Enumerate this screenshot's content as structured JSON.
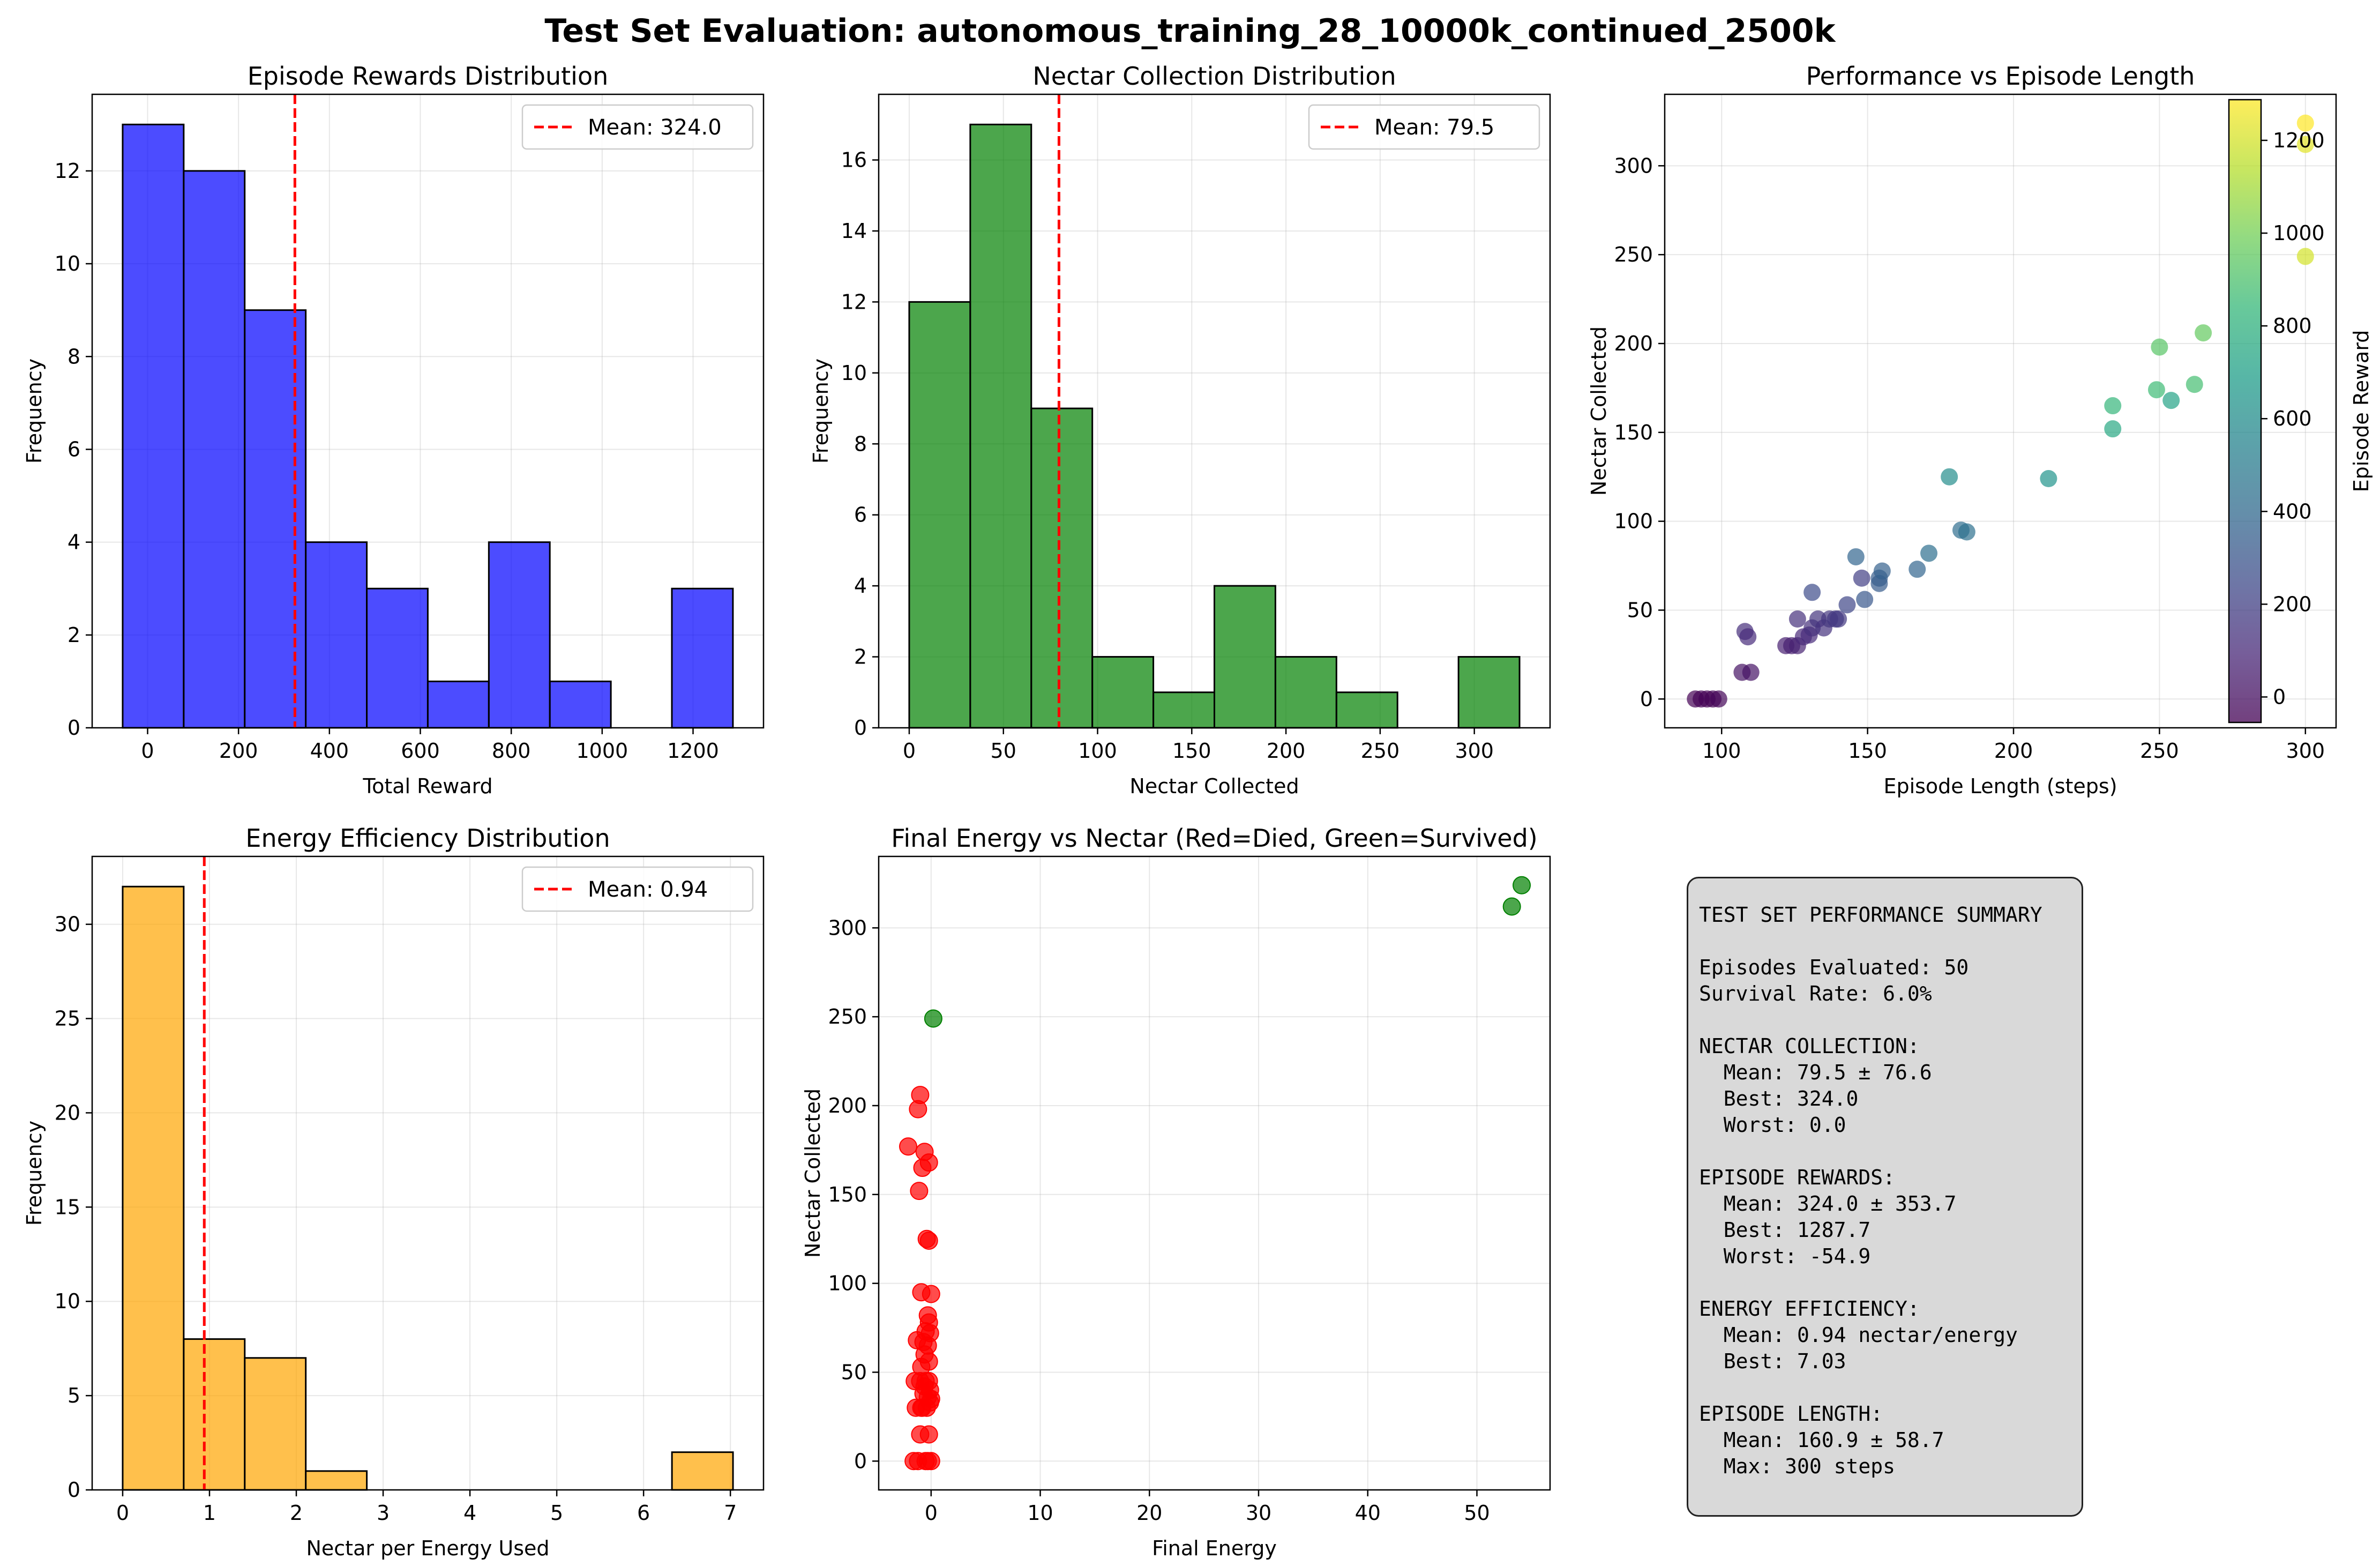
{
  "figure": {
    "title": "Test Set Evaluation: autonomous_training_28_10000k_continued_2500k"
  },
  "chart_data": [
    {
      "id": "rewards_hist",
      "type": "bar",
      "title": "Episode Rewards Distribution",
      "xlabel": "Total Reward",
      "ylabel": "Frequency",
      "bin_edges": [
        -54.9,
        79.4,
        213.6,
        347.9,
        482.2,
        616.4,
        750.7,
        884.9,
        1019.2,
        1153.4,
        1287.7
      ],
      "values": [
        13,
        12,
        9,
        4,
        3,
        1,
        4,
        1,
        0,
        3
      ],
      "color": "#0000ff",
      "xlim": [
        -122,
        1355
      ],
      "ylim": [
        0,
        13.65
      ],
      "xticks": [
        0,
        200,
        400,
        600,
        800,
        1000,
        1200
      ],
      "yticks": [
        0,
        2,
        4,
        6,
        8,
        10,
        12
      ],
      "mean_line": {
        "value": 324.0,
        "label": "Mean: 324.0",
        "color": "#ff0000"
      },
      "legend": "top-right",
      "grid": true
    },
    {
      "id": "nectar_hist",
      "type": "bar",
      "title": "Nectar Collection Distribution",
      "xlabel": "Nectar Collected",
      "ylabel": "Frequency",
      "bin_edges": [
        0,
        32.4,
        64.8,
        97.2,
        129.6,
        162,
        194.4,
        226.8,
        259.2,
        291.6,
        324
      ],
      "values": [
        12,
        17,
        9,
        2,
        1,
        4,
        2,
        1,
        0,
        2
      ],
      "color": "#008000",
      "xlim": [
        -16.2,
        340.2
      ],
      "ylim": [
        0,
        17.85
      ],
      "xticks": [
        0,
        50,
        100,
        150,
        200,
        250,
        300
      ],
      "yticks": [
        0,
        2,
        4,
        6,
        8,
        10,
        12,
        14,
        16
      ],
      "mean_line": {
        "value": 79.5,
        "label": "Mean: 79.5",
        "color": "#ff0000"
      },
      "legend": "top-right",
      "grid": true
    },
    {
      "id": "perf_scatter",
      "type": "scatter",
      "title": "Performance vs Episode Length",
      "xlabel": "Episode Length (steps)",
      "ylabel": "Nectar Collected",
      "xlim": [
        80.5,
        310.5
      ],
      "ylim": [
        -16.2,
        340.2
      ],
      "xticks": [
        100,
        150,
        200,
        250,
        300
      ],
      "yticks": [
        0,
        50,
        100,
        150,
        200,
        250,
        300
      ],
      "colorbar": {
        "label": "Episode Reward",
        "range": [
          -54.9,
          1287.7
        ],
        "ticks": [
          0,
          200,
          400,
          600,
          800,
          1000,
          1200
        ],
        "colormap": "viridis"
      },
      "points": [
        [
          91,
          0,
          -54
        ],
        [
          93,
          0,
          -50
        ],
        [
          95,
          0,
          -48
        ],
        [
          97,
          0,
          -45
        ],
        [
          99,
          0,
          -40
        ],
        [
          107,
          15,
          10
        ],
        [
          110,
          15,
          15
        ],
        [
          108,
          38,
          120
        ],
        [
          109,
          35,
          110
        ],
        [
          122,
          30,
          60
        ],
        [
          124,
          30,
          65
        ],
        [
          126,
          30,
          70
        ],
        [
          126,
          45,
          130
        ],
        [
          128,
          35,
          100
        ],
        [
          130,
          36,
          110
        ],
        [
          131,
          40,
          130
        ],
        [
          133,
          45,
          150
        ],
        [
          135,
          40,
          140
        ],
        [
          137,
          45,
          160
        ],
        [
          139,
          45,
          165
        ],
        [
          140,
          45,
          170
        ],
        [
          131,
          60,
          260
        ],
        [
          143,
          53,
          230
        ],
        [
          146,
          80,
          380
        ],
        [
          148,
          68,
          200
        ],
        [
          149,
          56,
          310
        ],
        [
          154,
          65,
          330
        ],
        [
          154,
          68,
          340
        ],
        [
          155,
          72,
          360
        ],
        [
          167,
          73,
          380
        ],
        [
          171,
          82,
          430
        ],
        [
          178,
          125,
          600
        ],
        [
          182,
          95,
          420
        ],
        [
          184,
          94,
          440
        ],
        [
          212,
          124,
          640
        ],
        [
          234,
          152,
          750
        ],
        [
          234,
          165,
          830
        ],
        [
          249,
          174,
          860
        ],
        [
          250,
          198,
          930
        ],
        [
          254,
          168,
          720
        ],
        [
          262,
          177,
          880
        ],
        [
          265,
          206,
          960
        ],
        [
          300,
          249,
          1200
        ],
        [
          300,
          312,
          1230
        ],
        [
          300,
          324,
          1287
        ]
      ],
      "grid": true
    },
    {
      "id": "efficiency_hist",
      "type": "bar",
      "title": "Energy Efficiency Distribution",
      "xlabel": "Nectar per Energy Used",
      "ylabel": "Frequency",
      "bin_edges": [
        0,
        0.703,
        1.406,
        2.109,
        2.812,
        3.515,
        4.218,
        4.921,
        5.624,
        6.327,
        7.03
      ],
      "values": [
        32,
        8,
        7,
        1,
        0,
        0,
        0,
        0,
        0,
        2
      ],
      "color": "#ffa500",
      "xlim": [
        -0.3515,
        7.3815
      ],
      "ylim": [
        0,
        33.6
      ],
      "xticks": [
        0,
        1,
        2,
        3,
        4,
        5,
        6,
        7
      ],
      "yticks": [
        0,
        5,
        10,
        15,
        20,
        25,
        30
      ],
      "mean_line": {
        "value": 0.94,
        "label": "Mean: 0.94",
        "color": "#ff0000"
      },
      "legend": "top-right",
      "grid": true
    },
    {
      "id": "energy_scatter",
      "type": "scatter",
      "title": "Final Energy vs Nectar (Red=Died, Green=Survived)",
      "xlabel": "Final Energy",
      "ylabel": "Nectar Collected",
      "xlim": [
        -4.8,
        56.7
      ],
      "ylim": [
        -16.2,
        340.2
      ],
      "xticks": [
        0,
        10,
        20,
        30,
        40,
        50
      ],
      "yticks": [
        0,
        50,
        100,
        150,
        200,
        250,
        300
      ],
      "series": [
        {
          "name": "Died",
          "color": "#ff0000",
          "points": [
            [
              -2.1,
              177
            ],
            [
              -1.0,
              206
            ],
            [
              -1.2,
              198
            ],
            [
              -0.6,
              174
            ],
            [
              -0.2,
              168
            ],
            [
              -0.8,
              165
            ],
            [
              -1.1,
              152
            ],
            [
              -0.4,
              125
            ],
            [
              -0.2,
              124
            ],
            [
              -0.9,
              95
            ],
            [
              0.0,
              94
            ],
            [
              -0.3,
              82
            ],
            [
              -0.2,
              78
            ],
            [
              -0.5,
              73
            ],
            [
              -0.1,
              72
            ],
            [
              -1.3,
              68
            ],
            [
              -0.7,
              67
            ],
            [
              -0.3,
              65
            ],
            [
              -0.6,
              60
            ],
            [
              -0.2,
              56
            ],
            [
              -0.9,
              53
            ],
            [
              -1.5,
              45
            ],
            [
              -1.0,
              45
            ],
            [
              -0.5,
              45
            ],
            [
              -0.2,
              45
            ],
            [
              -0.1,
              40
            ],
            [
              -0.7,
              38
            ],
            [
              -0.3,
              36
            ],
            [
              -1.4,
              30
            ],
            [
              -0.9,
              30
            ],
            [
              -0.4,
              30
            ],
            [
              0.0,
              35
            ],
            [
              -1.0,
              15
            ],
            [
              -0.2,
              15
            ],
            [
              -1.6,
              0
            ],
            [
              -1.2,
              0
            ],
            [
              -0.5,
              0
            ],
            [
              -0.3,
              0
            ],
            [
              0.0,
              0
            ],
            [
              -0.8,
              30
            ],
            [
              -0.1,
              33
            ],
            [
              -0.6,
              42
            ]
          ]
        },
        {
          "name": "Survived",
          "color": "#008000",
          "points": [
            [
              0.2,
              249
            ],
            [
              53.2,
              312
            ],
            [
              54.1,
              324
            ]
          ]
        }
      ],
      "grid": true
    }
  ],
  "summary": {
    "lines": [
      "TEST SET PERFORMANCE SUMMARY",
      "",
      "Episodes Evaluated: 50",
      "Survival Rate: 6.0%",
      "",
      "NECTAR COLLECTION:",
      "  Mean: 79.5 ± 76.6",
      "  Best: 324.0",
      "  Worst: 0.0",
      "",
      "EPISODE REWARDS:",
      "  Mean: 324.0 ± 353.7",
      "  Best: 1287.7",
      "  Worst: -54.9",
      "",
      "ENERGY EFFICIENCY:",
      "  Mean: 0.94 nectar/energy",
      "  Best: 7.03",
      "",
      "EPISODE LENGTH:",
      "  Mean: 160.9 ± 58.7",
      "  Max: 300 steps"
    ]
  }
}
